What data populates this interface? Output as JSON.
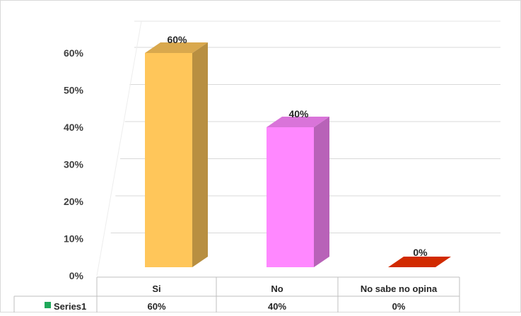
{
  "chart_data": {
    "type": "bar",
    "categories": [
      "Si",
      "No",
      "No sabe no opina"
    ],
    "series": [
      {
        "name": "Series1",
        "values": [
          60,
          40,
          0
        ],
        "value_labels": [
          "60%",
          "40%",
          "0%"
        ],
        "colors": [
          "#FFC65A",
          "#FF88FF",
          "#D12A00"
        ],
        "legend_color": "#1FA85A"
      }
    ],
    "ylim": [
      0,
      60
    ],
    "yticks": [
      0,
      10,
      20,
      30,
      40,
      50,
      60
    ],
    "ytick_labels": [
      "0%",
      "10%",
      "20%",
      "30%",
      "40%",
      "50%",
      "60%"
    ],
    "grid": true,
    "data_table": true,
    "style": "3d-bar"
  }
}
